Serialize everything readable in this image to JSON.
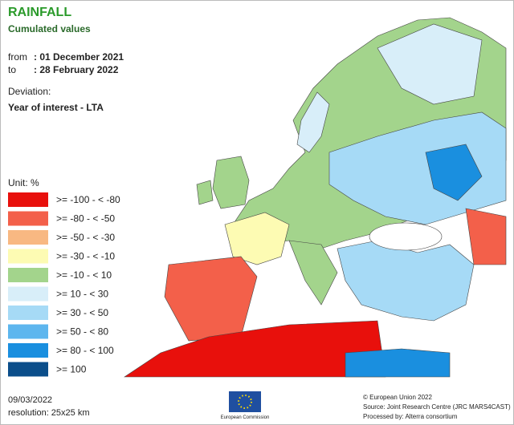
{
  "header": {
    "title": "RAINFALL",
    "subtitle": "Cumulated values",
    "from_label": "from",
    "from_date": ": 01 December 2021",
    "to_label": "to",
    "to_date": ": 28 February 2022",
    "deviation_label": "Deviation:",
    "deviation": "Year of interest - LTA"
  },
  "legend": {
    "unit": "Unit: %",
    "items": [
      {
        "label": ">= -100 - < -80",
        "color": "#e8100c"
      },
      {
        "label": ">= -80 - < -50",
        "color": "#f3604a"
      },
      {
        "label": ">= -50 - < -30",
        "color": "#f8b882"
      },
      {
        "label": ">= -30 - < -10",
        "color": "#fdfbb3"
      },
      {
        "label": ">= -10 - < 10",
        "color": "#a3d48c"
      },
      {
        "label": ">= 10 - < 30",
        "color": "#d8eef9"
      },
      {
        "label": ">= 30 - < 50",
        "color": "#a6daf6"
      },
      {
        "label": ">= 50 - < 80",
        "color": "#5db6ee"
      },
      {
        "label": ">= 80 - < 100",
        "color": "#1a8fdf"
      },
      {
        "label": ">= 100",
        "color": "#0b4e8a"
      }
    ]
  },
  "footer": {
    "date": "09/03/2022",
    "resolution": "resolution: 25x25 km",
    "logo": "European Commission",
    "copyright": "© European Union 2022",
    "source": "Source: Joint Research Centre (JRC MARS4CAST)",
    "processed": "Processed by: Alterra consortium"
  }
}
